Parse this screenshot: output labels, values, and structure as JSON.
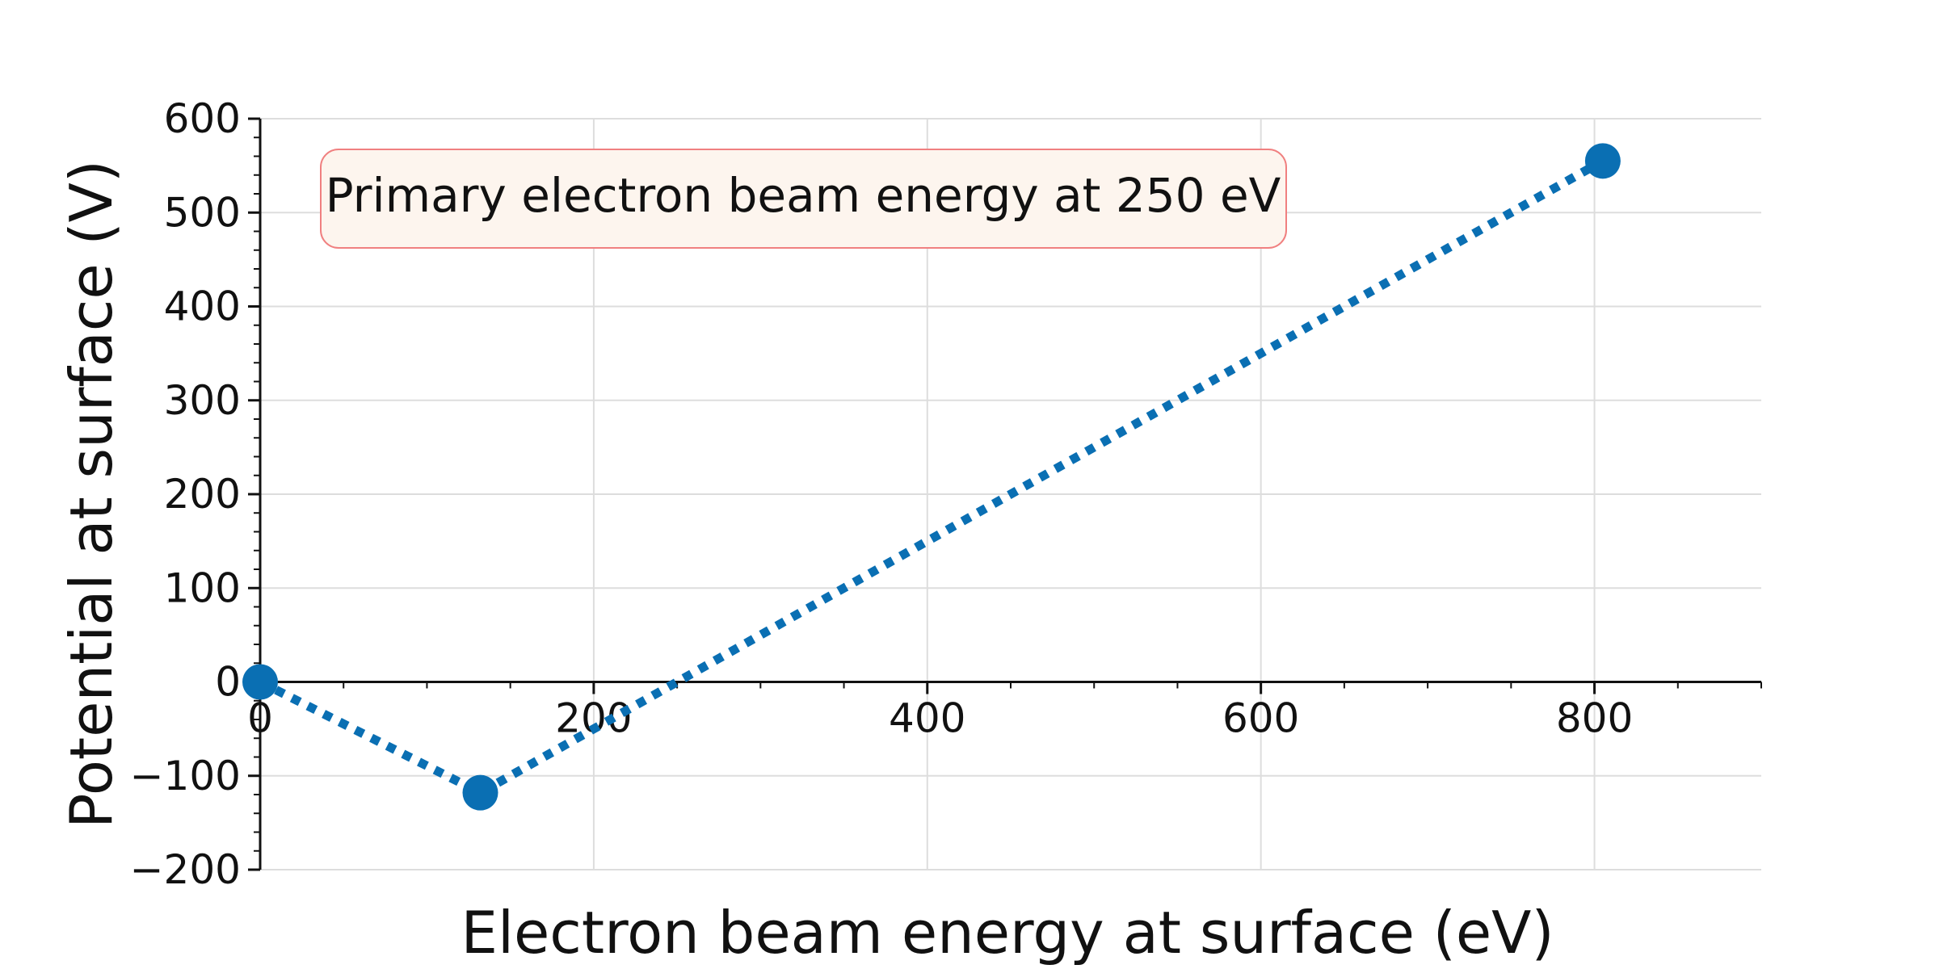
{
  "chart_data": {
    "type": "line",
    "title": "",
    "xlabel": "Electron beam energy at surface (eV)",
    "ylabel": "Potential at surface (V)",
    "xlim": [
      0,
      900
    ],
    "ylim": [
      -200,
      600
    ],
    "xticks": [
      0,
      200,
      400,
      600,
      800
    ],
    "yticks": [
      -200,
      -100,
      0,
      100,
      200,
      300,
      400,
      500,
      600
    ],
    "xtick_labels": [
      "0",
      "200",
      "400",
      "600",
      "800"
    ],
    "ytick_labels": [
      "−200",
      "−100",
      "0",
      "100",
      "200",
      "300",
      "400",
      "500",
      "600"
    ],
    "grid": true,
    "series": [
      {
        "x": [
          0,
          132,
          805
        ],
        "y": [
          0,
          -118,
          555
        ],
        "color": "#0a6fb3",
        "line_style": "dotted",
        "marker": "circle"
      }
    ],
    "annotation": {
      "text": "Primary electron beam energy at 250 eV",
      "background": "#fdf5ee",
      "border": "#f08080"
    }
  }
}
